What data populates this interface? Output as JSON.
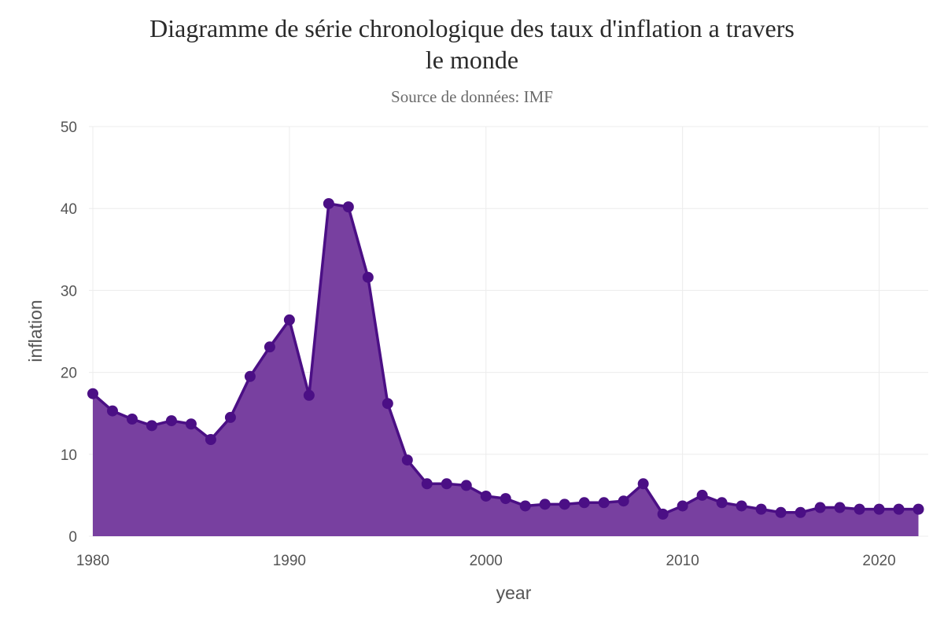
{
  "chart_data": {
    "type": "area",
    "title_lines": [
      "Diagramme de série chronologique des taux d'inflation a travers",
      "le monde"
    ],
    "subtitle": "Source de données: IMF",
    "xlabel": "year",
    "ylabel": "inflation",
    "xlim": [
      1979.8,
      2022.5
    ],
    "ylim": [
      0,
      50
    ],
    "xticks": [
      1980,
      1990,
      2000,
      2010,
      2020
    ],
    "yticks": [
      0,
      10,
      20,
      30,
      40,
      50
    ],
    "grid": true,
    "colors": {
      "line": "#4b0f85",
      "fill": "#7840a0",
      "marker": "#4b0f85",
      "grid": "#ececec"
    },
    "series": [
      {
        "x": [
          1980,
          1981,
          1982,
          1983,
          1984,
          1985,
          1986,
          1987,
          1988,
          1989,
          1990,
          1991,
          1992,
          1993,
          1994,
          1995,
          1996,
          1997,
          1998,
          1999,
          2000,
          2001,
          2002,
          2003,
          2004,
          2005,
          2006,
          2007,
          2008,
          2009,
          2010,
          2011,
          2012,
          2013,
          2014,
          2015,
          2016,
          2017,
          2018,
          2019,
          2020,
          2021,
          2022
        ],
        "values": [
          17.4,
          15.3,
          14.3,
          13.5,
          14.1,
          13.7,
          11.8,
          14.5,
          19.5,
          23.1,
          26.4,
          17.2,
          40.6,
          40.2,
          31.6,
          16.2,
          9.3,
          6.4,
          6.4,
          6.2,
          4.9,
          4.6,
          3.7,
          3.9,
          3.9,
          4.1,
          4.1,
          4.3,
          6.4,
          2.7,
          3.7,
          5.0,
          4.1,
          3.7,
          3.3,
          2.9,
          2.9,
          3.5,
          3.5,
          3.3,
          3.3,
          3.3,
          3.3
        ]
      }
    ]
  }
}
